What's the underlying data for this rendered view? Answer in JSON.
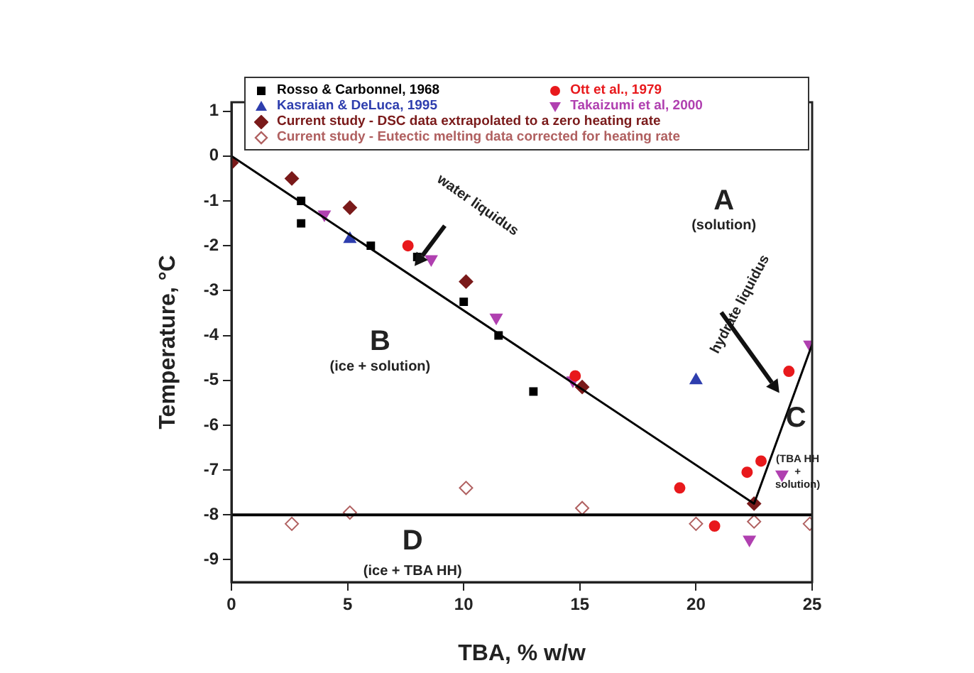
{
  "chart_data": {
    "type": "scatter",
    "xlabel": "TBA, % w/w",
    "ylabel": "Temperature, °C",
    "xlim": [
      0,
      25
    ],
    "xticks": [
      0,
      5,
      10,
      15,
      20,
      25
    ],
    "ylim": [
      -9.5,
      1.2
    ],
    "yticks": [
      -9,
      -8,
      -7,
      -6,
      -5,
      -4,
      -3,
      -2,
      -1,
      0,
      1
    ],
    "grid": false,
    "legend": "top",
    "series": [
      {
        "name": "Rosso & Carbonnel, 1968",
        "color": "#000000",
        "marker": "square",
        "x": [
          3,
          3,
          6,
          8,
          10,
          11.5,
          13
        ],
        "values": [
          -1.0,
          -1.5,
          -2.0,
          -2.25,
          -3.25,
          -4.0,
          -5.25
        ]
      },
      {
        "name": "Ott et al., 1979",
        "color": "#e8191c",
        "marker": "circle",
        "x": [
          7.6,
          14.8,
          19.3,
          20.8,
          22.2,
          22.8,
          24.0
        ],
        "values": [
          -2.0,
          -4.9,
          -7.4,
          -8.25,
          -7.05,
          -6.8,
          -4.8
        ]
      },
      {
        "name": "Kasraian & DeLuca, 1995",
        "color": "#2e3eae",
        "marker": "triangle",
        "x": [
          5.1,
          20.0
        ],
        "values": [
          -1.85,
          -5.0
        ]
      },
      {
        "name": "Takaizumi et al, 2000",
        "color": "#b040b0",
        "marker": "triangle-down",
        "x": [
          4.0,
          8.6,
          11.4,
          14.7,
          23.7,
          22.3,
          24.9
        ],
        "values": [
          -1.3,
          -2.3,
          -3.6,
          -5.0,
          -7.1,
          -8.55,
          -4.2
        ]
      },
      {
        "name": "Current study - DSC data extrapolated to a zero heating rate",
        "color": "#7a1a1a",
        "marker": "diamond",
        "x": [
          0,
          2.6,
          5.1,
          10.1,
          15.1,
          22.5
        ],
        "values": [
          -0.15,
          -0.5,
          -1.15,
          -2.8,
          -5.15,
          -7.75
        ]
      },
      {
        "name": "Current study - Eutectic melting data corrected for heating rate",
        "color": "#b06060",
        "marker": "diamond-open",
        "x": [
          2.6,
          5.1,
          10.1,
          15.1,
          20.0,
          22.5,
          24.9
        ],
        "values": [
          -8.2,
          -7.95,
          -7.4,
          -7.85,
          -8.2,
          -8.15,
          -8.2
        ]
      },
      {
        "type": "line",
        "color": "#000000",
        "marker": "none",
        "line_style": "solid",
        "x": [
          0,
          22.5,
          25
        ],
        "values": [
          0,
          -7.75,
          -4.2
        ]
      }
    ],
    "ref_lines": [
      {
        "axis": "y",
        "value": -8,
        "color": "#000000",
        "line_style": "solid"
      }
    ],
    "annotations": [
      "A",
      "(solution)",
      "B",
      "(ice + solution)",
      "C",
      "(TBA HH + solution)",
      "D",
      "(ice + TBA HH)",
      "water liquidus",
      "hydrate liquidus"
    ]
  }
}
